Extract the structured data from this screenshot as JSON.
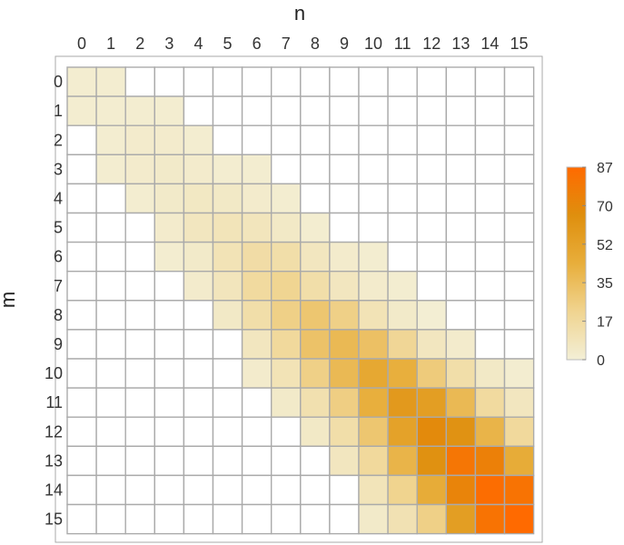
{
  "chart_data": {
    "type": "heatmap",
    "title": "",
    "xlabel": "n",
    "ylabel": "m",
    "x": [
      0,
      1,
      2,
      3,
      4,
      5,
      6,
      7,
      8,
      9,
      10,
      11,
      12,
      13,
      14,
      15
    ],
    "y": [
      0,
      1,
      2,
      3,
      4,
      5,
      6,
      7,
      8,
      9,
      10,
      11,
      12,
      13,
      14,
      15
    ],
    "x_tick_labels": [
      "0",
      "1",
      "2",
      "3",
      "4",
      "5",
      "6",
      "7",
      "8",
      "9",
      "10",
      "11",
      "12",
      "13",
      "14",
      "15"
    ],
    "y_tick_labels": [
      "0",
      "1",
      "2",
      "3",
      "4",
      "5",
      "6",
      "7",
      "8",
      "9",
      "10",
      "11",
      "12",
      "13",
      "14",
      "15"
    ],
    "x_axis_position": "top",
    "grid": true,
    "note_zero_cells": "cells with value 0 are shown white",
    "colorbar": {
      "range": [
        0,
        87
      ],
      "ticks": [
        "0",
        "17",
        "35",
        "52",
        "70",
        "87"
      ],
      "tick_values": [
        0,
        17.4,
        34.8,
        52.2,
        69.6,
        87
      ],
      "colors": [
        "#f3efd6",
        "#f0d490",
        "#e8ae3b",
        "#df8f0e",
        "#ff6a00"
      ],
      "placement": "right"
    },
    "values": [
      [
        2,
        2,
        0,
        0,
        0,
        0,
        0,
        0,
        0,
        0,
        0,
        0,
        0,
        0,
        0,
        0
      ],
      [
        2,
        2,
        2,
        2,
        0,
        0,
        0,
        0,
        0,
        0,
        0,
        0,
        0,
        0,
        0,
        0
      ],
      [
        0,
        2,
        3,
        3,
        2,
        0,
        0,
        0,
        0,
        0,
        0,
        0,
        0,
        0,
        0,
        0
      ],
      [
        0,
        2,
        3,
        4,
        3,
        2,
        2,
        0,
        0,
        0,
        0,
        0,
        0,
        0,
        0,
        0
      ],
      [
        0,
        0,
        2,
        4,
        6,
        5,
        3,
        2,
        0,
        0,
        0,
        0,
        0,
        0,
        0,
        0
      ],
      [
        0,
        0,
        0,
        3,
        7,
        9,
        8,
        5,
        2,
        0,
        0,
        0,
        0,
        0,
        0,
        0
      ],
      [
        0,
        0,
        0,
        2,
        4,
        10,
        15,
        14,
        7,
        3,
        2,
        0,
        0,
        0,
        0,
        0
      ],
      [
        0,
        0,
        0,
        0,
        3,
        8,
        17,
        21,
        14,
        7,
        3,
        2,
        0,
        0,
        0,
        0
      ],
      [
        0,
        0,
        0,
        0,
        0,
        5,
        14,
        24,
        30,
        24,
        10,
        4,
        1,
        0,
        0,
        0
      ],
      [
        0,
        0,
        0,
        0,
        0,
        0,
        7,
        18,
        32,
        37,
        33,
        20,
        7,
        3,
        0,
        0
      ],
      [
        0,
        0,
        0,
        0,
        0,
        0,
        3,
        10,
        24,
        37,
        48,
        43,
        27,
        14,
        5,
        2
      ],
      [
        0,
        0,
        0,
        0,
        0,
        0,
        0,
        4,
        12,
        25,
        43,
        58,
        55,
        37,
        17,
        7
      ],
      [
        0,
        0,
        0,
        0,
        0,
        0,
        0,
        0,
        5,
        14,
        30,
        52,
        68,
        63,
        40,
        18
      ],
      [
        0,
        0,
        0,
        0,
        0,
        0,
        0,
        0,
        0,
        7,
        18,
        40,
        64,
        80,
        74,
        45
      ],
      [
        0,
        0,
        0,
        0,
        0,
        0,
        0,
        0,
        0,
        0,
        9,
        22,
        45,
        72,
        85,
        82
      ],
      [
        0,
        0,
        0,
        0,
        0,
        0,
        0,
        0,
        0,
        0,
        4,
        11,
        24,
        55,
        82,
        87
      ]
    ]
  }
}
